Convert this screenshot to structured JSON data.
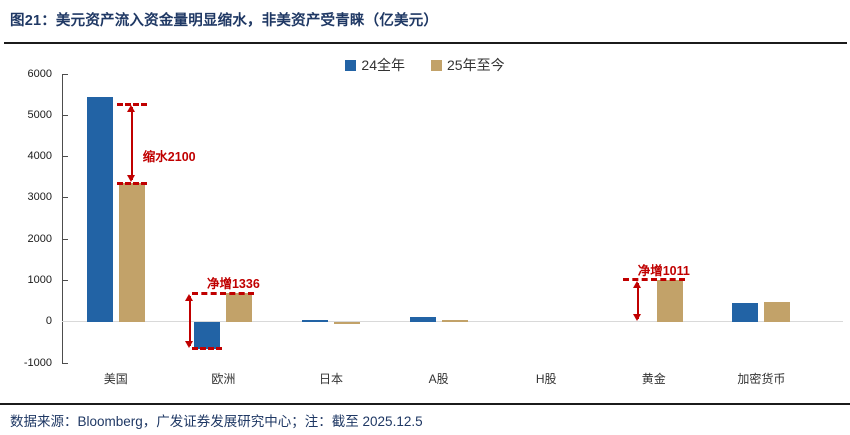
{
  "footer": {
    "source": "数据来源：Bloomberg，广发证券发展研究中心；注：截至 2025.12.5"
  },
  "chart_data": {
    "type": "bar",
    "title": "图21：美元资产流入资金量明显缩水，非美资产受青睐（亿美元）",
    "categories": [
      "美国",
      "欧洲",
      "日本",
      "A股",
      "H股",
      "黄金",
      "加密货币"
    ],
    "series": [
      {
        "name": "24全年",
        "color": "#2263A5",
        "values": [
          5450,
          -650,
          35,
          105,
          0,
          0,
          450
        ]
      },
      {
        "name": "25年至今",
        "color": "#C2A269",
        "values": [
          3350,
          686,
          -60,
          40,
          0,
          1011,
          480
        ]
      }
    ],
    "ylim": [
      -1000,
      6000
    ],
    "ytick_interval": 1000,
    "grid": false,
    "legend_position": "top-center",
    "axis_color": "#4d4d4d",
    "zero_line_color": "#d9d9d9",
    "annotation_color": "#C00000",
    "annotations": [
      {
        "label": "缩水2100",
        "group": 0,
        "v_top": 5270,
        "v_bottom": 3350,
        "arrow_at": "bar2",
        "dash_top": "bar2",
        "dash_bottom": "bar2",
        "label_at": "right"
      },
      {
        "label": "净增1336",
        "group": 1,
        "v_top": 686,
        "v_bottom": -650,
        "arrow_at": "left",
        "dash_top": "group",
        "dash_bottom": "bar1",
        "label_at": "above"
      },
      {
        "label": "净增1011",
        "group": 5,
        "v_top": 1011,
        "v_bottom": 0,
        "arrow_at": "bar1",
        "dash_top": "group",
        "dash_bottom": null,
        "label_at": "above"
      }
    ]
  }
}
